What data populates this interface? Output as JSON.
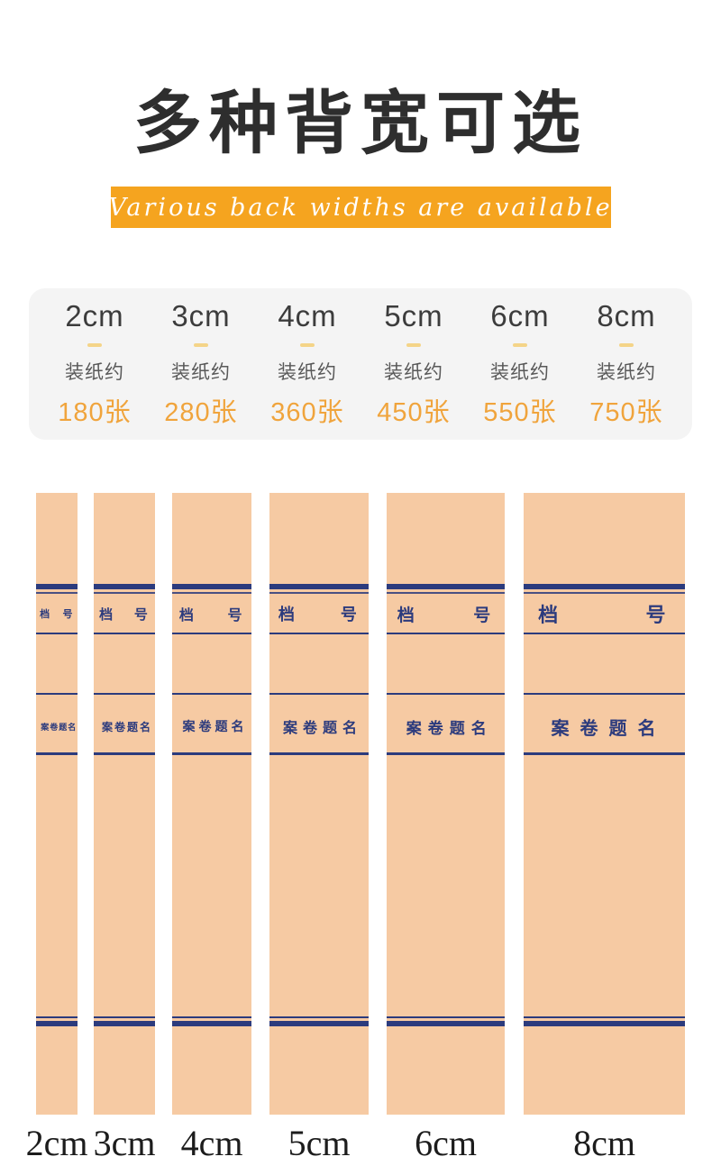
{
  "header": {
    "title": "多种背宽可选",
    "subtitle": "Various back widths are available"
  },
  "specs": {
    "items": [
      {
        "size": "2cm",
        "capacity_label": "装纸约",
        "sheets": "180张"
      },
      {
        "size": "3cm",
        "capacity_label": "装纸约",
        "sheets": "280张"
      },
      {
        "size": "4cm",
        "capacity_label": "装纸约",
        "sheets": "360张"
      },
      {
        "size": "5cm",
        "capacity_label": "装纸约",
        "sheets": "450张"
      },
      {
        "size": "6cm",
        "capacity_label": "装纸约",
        "sheets": "550张"
      },
      {
        "size": "8cm",
        "capacity_label": "装纸约",
        "sheets": "750张"
      }
    ]
  },
  "spines": {
    "items": [
      {
        "size_label": "2cm",
        "file_no_left": "档",
        "file_no_right": "号",
        "title_label": "案卷题名"
      },
      {
        "size_label": "3cm",
        "file_no_left": "档",
        "file_no_right": "号",
        "title_label": "案卷题名"
      },
      {
        "size_label": "4cm",
        "file_no_left": "档",
        "file_no_right": "号",
        "title_label": "案卷题名"
      },
      {
        "size_label": "5cm",
        "file_no_left": "档",
        "file_no_right": "号",
        "title_label": "案卷题名"
      },
      {
        "size_label": "6cm",
        "file_no_left": "档",
        "file_no_right": "号",
        "title_label": "案卷题名"
      },
      {
        "size_label": "8cm",
        "file_no_left": "档",
        "file_no_right": "号",
        "title_label": "案卷题名"
      }
    ]
  },
  "colors": {
    "accent": "#f5a41f",
    "orange_text": "#f0a43c",
    "dash": "#f4d488",
    "tan": "#f6caa3",
    "navy": "#2c3b7d",
    "panel": "#f4f4f4",
    "ink": "#2e2e2e",
    "gray_text": "#595959",
    "label_ink": "#1c1c1c"
  }
}
